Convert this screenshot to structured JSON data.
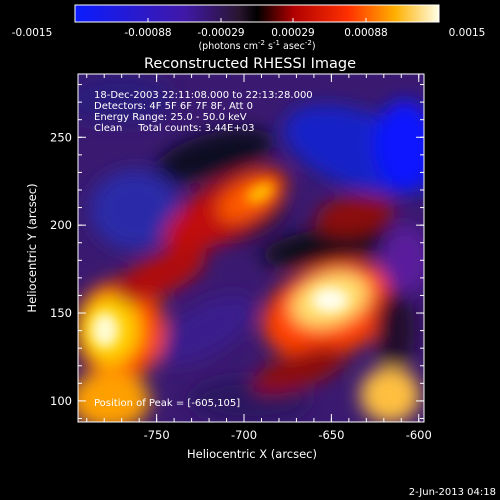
{
  "colorbar": {
    "ticks": [
      "-0.0015",
      "-0.00088",
      "-0.00029",
      "0.00029",
      "0.00088",
      "0.0015"
    ],
    "unit_main": "(photons cm",
    "unit_exp1": "-2",
    "unit_mid": " s",
    "unit_exp2": "-1",
    "unit_tail": " asec",
    "unit_exp3": "-2",
    "unit_close": ")"
  },
  "title": "Reconstructed RHESSI Image",
  "info": {
    "line1": "18-Dec-2003 22:11:08.000 to 22:13:28.000",
    "line2": "Detectors: 4F 5F 6F 7F 8F, Att 0",
    "line3": "Energy Range: 25.0 - 50.0 keV",
    "line4": "Clean     Total counts: 3.44E+03"
  },
  "peak_label": "Position of Peak = [-605,105]",
  "axes": {
    "xlabel": "Heliocentric X (arcsec)",
    "ylabel": "Heliocentric Y (arcsec)",
    "x_ticks": [
      {
        "label": "-750",
        "value": -750
      },
      {
        "label": "-700",
        "value": -700
      },
      {
        "label": "-650",
        "value": -650
      },
      {
        "label": "-600",
        "value": -600
      }
    ],
    "y_ticks": [
      {
        "label": "100",
        "value": 100
      },
      {
        "label": "150",
        "value": 150
      },
      {
        "label": "200",
        "value": 200
      },
      {
        "label": "250",
        "value": 250
      }
    ],
    "xlim": [
      -795,
      -597
    ],
    "ylim": [
      88,
      286
    ]
  },
  "footer_date": "2-Jun-2013 04:18"
}
